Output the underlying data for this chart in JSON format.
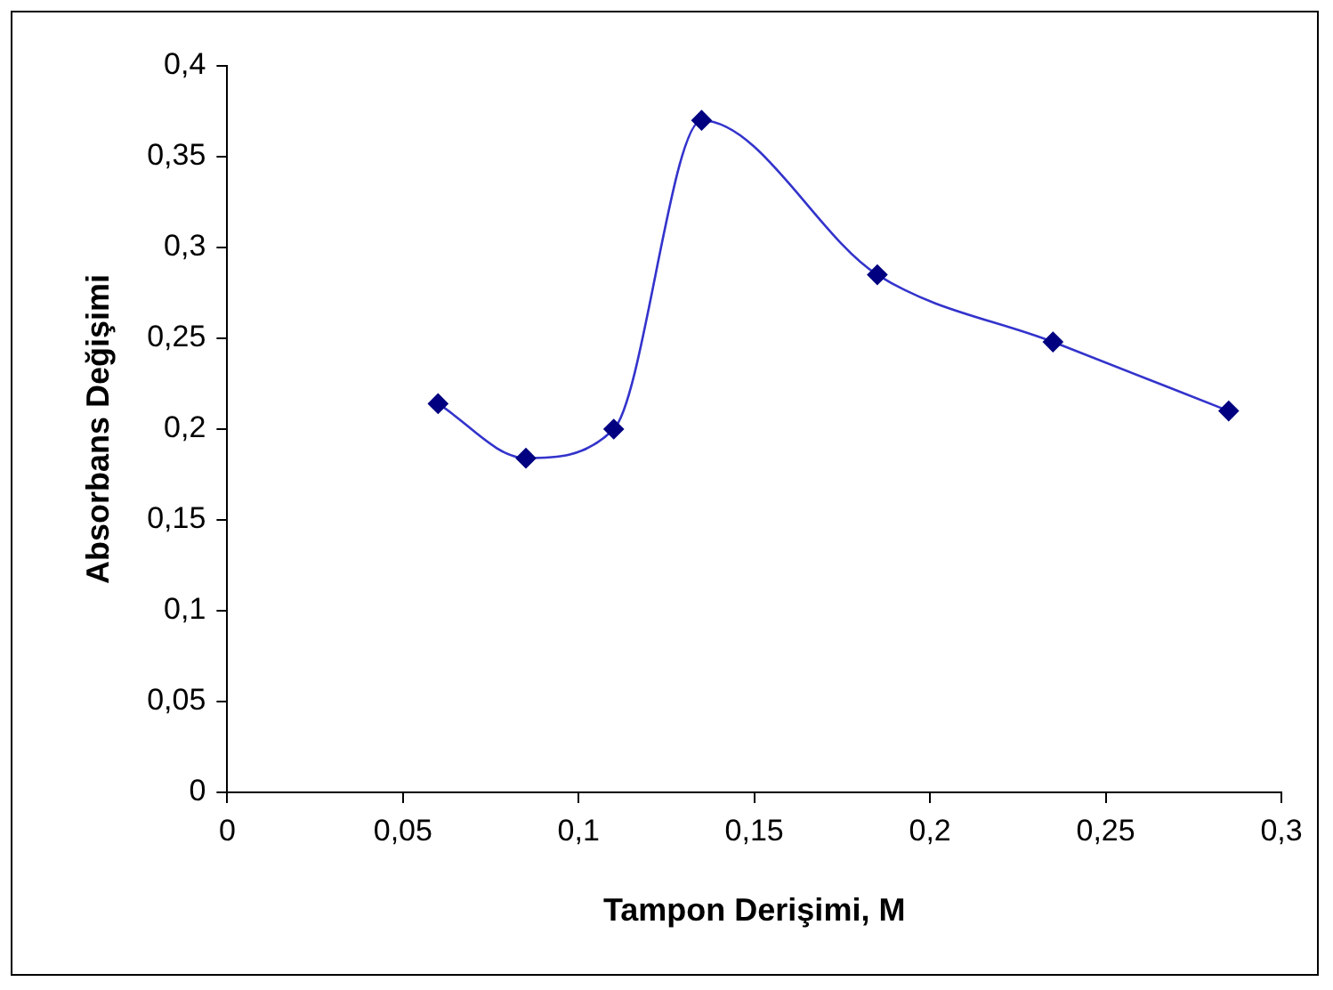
{
  "chart_data": {
    "type": "line",
    "xlabel": "Tampon Derişimi, M",
    "ylabel": "Absorbans Değişimi",
    "x": [
      0.06,
      0.085,
      0.11,
      0.135,
      0.185,
      0.235,
      0.285
    ],
    "series": [
      {
        "color": "#000080",
        "values": [
          0.214,
          0.184,
          0.2,
          0.37,
          0.285,
          0.248,
          0.21
        ]
      }
    ],
    "xlim": [
      0,
      0.3
    ],
    "ylim": [
      0,
      0.4
    ],
    "xticks": [
      0,
      {
        "value": 0.05,
        "label": "0,05"
      },
      {
        "value": 0.1,
        "label": "0,1"
      },
      {
        "value": 0.15,
        "label": "0,15"
      },
      {
        "value": 0.2,
        "label": "0,2"
      },
      {
        "value": 0.25,
        "label": "0,25"
      },
      {
        "value": 0.3,
        "label": "0,3"
      }
    ],
    "yticks": [
      0,
      {
        "value": 0.05,
        "label": "0,05"
      },
      {
        "value": 0.1,
        "label": "0,1"
      },
      {
        "value": 0.15,
        "label": "0,15"
      },
      {
        "value": 0.2,
        "label": "0,2"
      },
      {
        "value": 0.25,
        "label": "0,25"
      },
      {
        "value": 0.3,
        "label": "0,3"
      },
      {
        "value": 0.35,
        "label": "0,35"
      },
      {
        "value": 0.4,
        "label": "0,4"
      }
    ],
    "grid": false,
    "legend": false,
    "marker": "diamond",
    "line_style": "solid"
  }
}
